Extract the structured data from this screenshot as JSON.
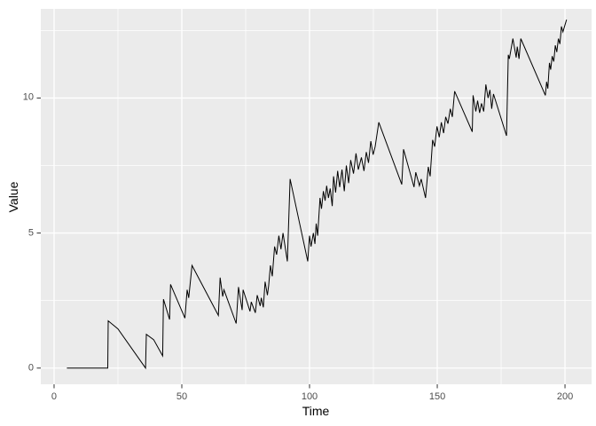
{
  "style": {
    "figure_bg": "#FFFFFF",
    "panel_bg": "#EBEBEB",
    "grid_color": "#FFFFFF",
    "tick_mark_color": "#333333",
    "tick_label_color": "#4D4D4D",
    "axis_title_color": "#000000",
    "line_color": "#000000"
  },
  "chart_data": {
    "type": "line",
    "title": "",
    "xlabel": "Time",
    "ylabel": "Value",
    "xlim": [
      -5.2,
      210.4
    ],
    "ylim": [
      -0.6,
      13.3
    ],
    "grid": "on",
    "legend_position": "none",
    "x_major_gridlines": [
      0,
      50,
      100,
      150,
      200
    ],
    "x_minor_gridlines": [
      25,
      75,
      125,
      175
    ],
    "y_major_gridlines": [
      0,
      5,
      10
    ],
    "y_minor_gridlines": [
      2.5,
      7.5,
      12.5
    ],
    "x_ticks": {
      "values": [
        0,
        50,
        100,
        150,
        200
      ],
      "labels": [
        "0",
        "50",
        "100",
        "150",
        "200"
      ]
    },
    "y_ticks": {
      "values": [
        0,
        5,
        10
      ],
      "labels": [
        "0",
        "5",
        "10"
      ]
    },
    "series": [
      {
        "name": "value-line",
        "color": "#000000",
        "points": [
          [
            5,
            0
          ],
          [
            21,
            0
          ],
          [
            21.2,
            1.75
          ],
          [
            25,
            1.45
          ],
          [
            35.8,
            0
          ],
          [
            36.1,
            1.25
          ],
          [
            39,
            1.05
          ],
          [
            42.5,
            0.45
          ],
          [
            42.8,
            2.55
          ],
          [
            45.2,
            1.8
          ],
          [
            45.6,
            3.1
          ],
          [
            51.2,
            1.85
          ],
          [
            52.1,
            2.9
          ],
          [
            52.7,
            2.6
          ],
          [
            54,
            3.8
          ],
          [
            64.3,
            1.95
          ],
          [
            65,
            3.35
          ],
          [
            66,
            2.65
          ],
          [
            66.5,
            2.9
          ],
          [
            71.3,
            1.65
          ],
          [
            72.2,
            3
          ],
          [
            73.6,
            2.15
          ],
          [
            74,
            2.9
          ],
          [
            76.7,
            2.1
          ],
          [
            77.2,
            2.45
          ],
          [
            78.8,
            2.05
          ],
          [
            79.5,
            2.7
          ],
          [
            80.7,
            2.3
          ],
          [
            81.1,
            2.6
          ],
          [
            81.9,
            2.25
          ],
          [
            82.6,
            3.2
          ],
          [
            83.5,
            2.7
          ],
          [
            84,
            3.05
          ],
          [
            84.7,
            3.8
          ],
          [
            85.4,
            3.4
          ],
          [
            86.3,
            4.5
          ],
          [
            87.1,
            4.2
          ],
          [
            88,
            4.9
          ],
          [
            88.8,
            4.4
          ],
          [
            89.6,
            5
          ],
          [
            90.6,
            4.4
          ],
          [
            91.3,
            3.95
          ],
          [
            92.4,
            7
          ],
          [
            99.3,
            3.95
          ],
          [
            100,
            4.9
          ],
          [
            100.6,
            4.5
          ],
          [
            101.5,
            5
          ],
          [
            102.1,
            4.6
          ],
          [
            102.6,
            5.35
          ],
          [
            103.2,
            4.9
          ],
          [
            104.1,
            6.3
          ],
          [
            104.7,
            5.9
          ],
          [
            105.4,
            6.55
          ],
          [
            106.1,
            6.2
          ],
          [
            106.7,
            6.75
          ],
          [
            107.4,
            6.3
          ],
          [
            108.1,
            6.65
          ],
          [
            108.9,
            6
          ],
          [
            109.4,
            7.1
          ],
          [
            110.2,
            6.5
          ],
          [
            111,
            7.3
          ],
          [
            111.8,
            6.7
          ],
          [
            112.7,
            7.35
          ],
          [
            113.6,
            6.55
          ],
          [
            114.4,
            7.5
          ],
          [
            115.3,
            6.85
          ],
          [
            116.1,
            7.7
          ],
          [
            117.2,
            7.2
          ],
          [
            118.2,
            7.95
          ],
          [
            119.1,
            7.35
          ],
          [
            120.3,
            7.8
          ],
          [
            121.3,
            7.3
          ],
          [
            122.2,
            8
          ],
          [
            123.1,
            7.6
          ],
          [
            124,
            8.4
          ],
          [
            124.9,
            7.9
          ],
          [
            125.7,
            8.2
          ],
          [
            127.1,
            9.1
          ],
          [
            136.1,
            6.8
          ],
          [
            136.8,
            8.1
          ],
          [
            140.9,
            6.7
          ],
          [
            141.6,
            7.25
          ],
          [
            143,
            6.75
          ],
          [
            143.7,
            7
          ],
          [
            145.4,
            6.3
          ],
          [
            146.5,
            7.45
          ],
          [
            147.2,
            7.1
          ],
          [
            148.2,
            8.45
          ],
          [
            149,
            8.2
          ],
          [
            149.9,
            8.95
          ],
          [
            150.8,
            8.55
          ],
          [
            151.6,
            9.1
          ],
          [
            152.5,
            8.7
          ],
          [
            153.3,
            9.3
          ],
          [
            154.2,
            9.05
          ],
          [
            155.1,
            9.6
          ],
          [
            155.9,
            9.3
          ],
          [
            156.8,
            10.25
          ],
          [
            163.7,
            8.75
          ],
          [
            164,
            10.1
          ],
          [
            165.1,
            9.5
          ],
          [
            165.8,
            9.9
          ],
          [
            166.6,
            9.45
          ],
          [
            167.3,
            9.8
          ],
          [
            168.2,
            9.5
          ],
          [
            169,
            10.5
          ],
          [
            169.9,
            10
          ],
          [
            170.6,
            10.3
          ],
          [
            171.3,
            9.6
          ],
          [
            172,
            10.15
          ],
          [
            177.1,
            8.6
          ],
          [
            177.8,
            11.6
          ],
          [
            178.2,
            11.45
          ],
          [
            179.6,
            12.2
          ],
          [
            180.9,
            11.5
          ],
          [
            181.3,
            11.9
          ],
          [
            182,
            11.45
          ],
          [
            182.7,
            12.2
          ],
          [
            192.3,
            10.1
          ],
          [
            192.8,
            10.6
          ],
          [
            193.3,
            10.35
          ],
          [
            193.9,
            11.3
          ],
          [
            194.4,
            11.05
          ],
          [
            195,
            11.55
          ],
          [
            195.6,
            11.35
          ],
          [
            196.2,
            11.95
          ],
          [
            196.8,
            11.7
          ],
          [
            197.4,
            12.2
          ],
          [
            198,
            12
          ],
          [
            198.6,
            12.65
          ],
          [
            199.2,
            12.45
          ],
          [
            200.6,
            12.9
          ]
        ]
      }
    ]
  }
}
